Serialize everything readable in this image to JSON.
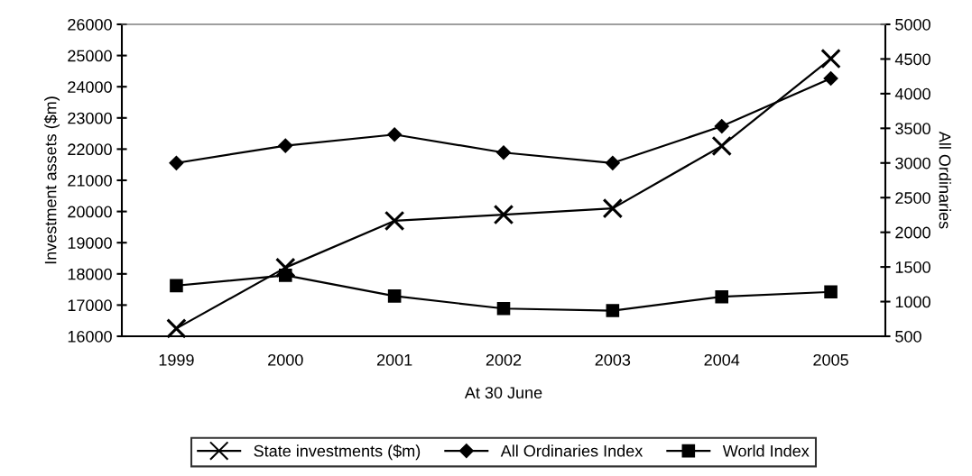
{
  "chart_data": {
    "type": "line",
    "xlabel": "At 30 June",
    "ylabel": "Investment assets ($m)",
    "y2label": "All Ordinaries",
    "categories": [
      "1999",
      "2000",
      "2001",
      "2002",
      "2003",
      "2004",
      "2005"
    ],
    "series": [
      {
        "name": "State investments ($m)",
        "color": "#000000",
        "marker": "cross",
        "values": [
          16250,
          18200,
          19700,
          19900,
          20100,
          22100,
          24900
        ]
      },
      {
        "name": "All Ordinaries Index",
        "color": "#000000",
        "marker": "diamond",
        "axis": "y2",
        "values": [
          3000,
          3250,
          3410,
          3150,
          3000,
          3530,
          4220
        ]
      },
      {
        "name": "World Index",
        "color": "#000000",
        "marker": "square",
        "axis": "y2",
        "values": [
          1230,
          1380,
          1080,
          900,
          870,
          1070,
          1140
        ]
      }
    ],
    "ylim": [
      16000,
      26000
    ],
    "yticks": [
      16000,
      17000,
      18000,
      19000,
      20000,
      21000,
      22000,
      23000,
      24000,
      25000,
      26000
    ],
    "y2lim": [
      500,
      5000
    ],
    "y2ticks": [
      500,
      1000,
      1500,
      2000,
      2500,
      3000,
      3500,
      4000,
      4500,
      5000
    ],
    "grid": false,
    "legend": "bottom",
    "line_style": "solid"
  }
}
